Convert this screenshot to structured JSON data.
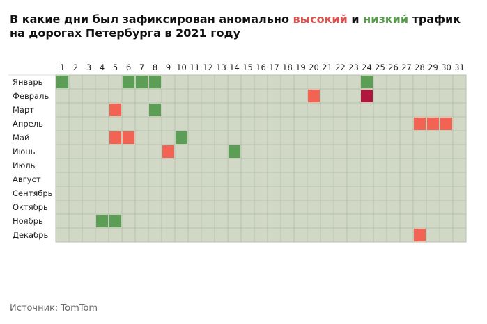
{
  "title": {
    "part1": "В какие дни был зафиксирован аномально ",
    "high": "высокий",
    "mid": " и ",
    "low": "низкий",
    "part2": " трафик на дорогах Петербурга в 2021 году"
  },
  "source": "Источник: TomTom",
  "colors": {
    "base": "#d1d8c6",
    "grid": "#b8bfad",
    "high": "#f26353",
    "low": "#5c9e55",
    "extreme": "#b0173f",
    "title_high": "#d9534f",
    "title_low": "#5a9a4d"
  },
  "chart_data": {
    "type": "heatmap",
    "title": "В какие дни был зафиксирован аномально высокий и низкий трафик на дорогах Петербурга в 2021 году",
    "x": [
      "1",
      "2",
      "3",
      "4",
      "5",
      "6",
      "7",
      "8",
      "9",
      "10",
      "11",
      "12",
      "13",
      "14",
      "15",
      "16",
      "17",
      "18",
      "19",
      "20",
      "21",
      "22",
      "23",
      "24",
      "25",
      "26",
      "27",
      "28",
      "29",
      "30",
      "31"
    ],
    "y": [
      "Январь",
      "Февраль",
      "Март",
      "Апрель",
      "Май",
      "Июнь",
      "Июль",
      "Август",
      "Сентябрь",
      "Октябрь",
      "Ноябрь",
      "Декабрь"
    ],
    "legend": {
      "high": "высокий",
      "low": "низкий"
    },
    "cells": [
      {
        "month": "Январь",
        "day": 1,
        "level": "low"
      },
      {
        "month": "Январь",
        "day": 6,
        "level": "low"
      },
      {
        "month": "Январь",
        "day": 7,
        "level": "low"
      },
      {
        "month": "Январь",
        "day": 8,
        "level": "low"
      },
      {
        "month": "Январь",
        "day": 24,
        "level": "low"
      },
      {
        "month": "Февраль",
        "day": 20,
        "level": "high"
      },
      {
        "month": "Февраль",
        "day": 24,
        "level": "extreme"
      },
      {
        "month": "Март",
        "day": 5,
        "level": "high"
      },
      {
        "month": "Март",
        "day": 8,
        "level": "low"
      },
      {
        "month": "Апрель",
        "day": 28,
        "level": "high"
      },
      {
        "month": "Апрель",
        "day": 29,
        "level": "high"
      },
      {
        "month": "Апрель",
        "day": 30,
        "level": "high"
      },
      {
        "month": "Май",
        "day": 5,
        "level": "high"
      },
      {
        "month": "Май",
        "day": 6,
        "level": "high"
      },
      {
        "month": "Май",
        "day": 10,
        "level": "low"
      },
      {
        "month": "Июнь",
        "day": 9,
        "level": "high"
      },
      {
        "month": "Июнь",
        "day": 14,
        "level": "low"
      },
      {
        "month": "Ноябрь",
        "day": 4,
        "level": "low"
      },
      {
        "month": "Ноябрь",
        "day": 5,
        "level": "low"
      },
      {
        "month": "Декабрь",
        "day": 28,
        "level": "high"
      }
    ]
  }
}
